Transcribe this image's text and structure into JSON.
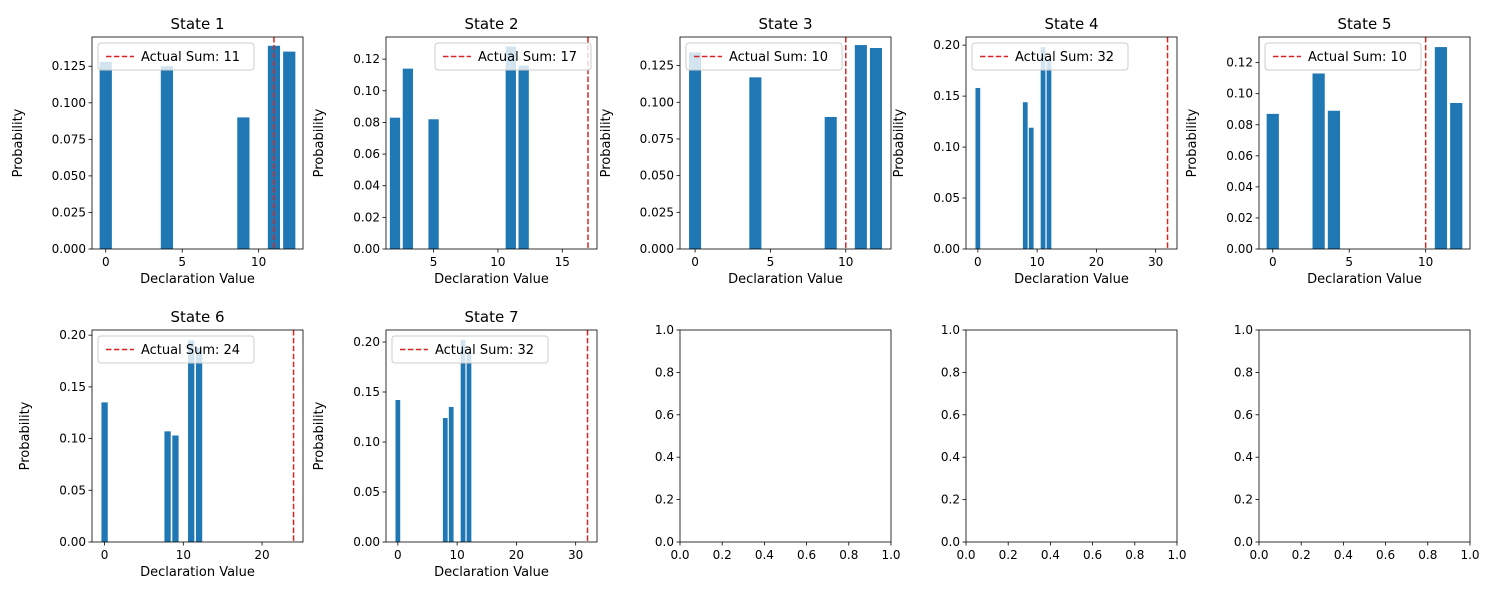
{
  "chart_data": [
    {
      "type": "bar",
      "title": "State 1",
      "xlabel": "Declaration Value",
      "ylabel": "Probability",
      "xlim": [
        -0.9,
        12.9
      ],
      "ylim": [
        0,
        0.145
      ],
      "xticks": [
        0,
        5,
        10
      ],
      "yticks": [
        0,
        0.025,
        0.05,
        0.075,
        0.1,
        0.125
      ],
      "ytick_decimals": 3,
      "x": [
        0,
        4,
        9,
        11,
        12
      ],
      "values": [
        0.128,
        0.125,
        0.09,
        0.139,
        0.135
      ],
      "line": {
        "x": 11,
        "label": "Actual Sum: 11"
      },
      "color": "#1f77b4",
      "line_color": "#d62728",
      "legend_position": "top-left"
    },
    {
      "type": "bar",
      "title": "State 2",
      "xlabel": "Declaration Value",
      "ylabel": "Probability",
      "xlim": [
        1.3,
        17.7
      ],
      "ylim": [
        0,
        0.134
      ],
      "xticks": [
        5,
        10,
        15
      ],
      "yticks": [
        0,
        0.02,
        0.04,
        0.06,
        0.08,
        0.1,
        0.12
      ],
      "ytick_decimals": 2,
      "x": [
        2,
        3,
        5,
        11,
        12
      ],
      "values": [
        0.083,
        0.114,
        0.082,
        0.128,
        0.116
      ],
      "line": {
        "x": 17,
        "label": "Actual Sum: 17"
      },
      "color": "#1f77b4",
      "line_color": "#d62728",
      "legend_position": "top-right"
    },
    {
      "type": "bar",
      "title": "State 3",
      "xlabel": "Declaration Value",
      "ylabel": "Probability",
      "xlim": [
        -1.0,
        13.0
      ],
      "ylim": [
        0,
        0.1445
      ],
      "xticks": [
        0,
        5,
        10
      ],
      "yticks": [
        0,
        0.025,
        0.05,
        0.075,
        0.1,
        0.125
      ],
      "ytick_decimals": 3,
      "x": [
        0,
        4,
        9,
        11,
        12
      ],
      "values": [
        0.134,
        0.117,
        0.09,
        0.139,
        0.137
      ],
      "line": {
        "x": 10,
        "label": "Actual Sum: 10"
      },
      "color": "#1f77b4",
      "line_color": "#d62728",
      "legend_position": "top-left"
    },
    {
      "type": "bar",
      "title": "State 4",
      "xlabel": "Declaration Value",
      "ylabel": "Probability",
      "xlim": [
        -2.0,
        33.6
      ],
      "ylim": [
        0,
        0.208
      ],
      "xticks": [
        0,
        10,
        20,
        30
      ],
      "yticks": [
        0,
        0.05,
        0.1,
        0.15,
        0.2
      ],
      "ytick_decimals": 2,
      "x": [
        0,
        8,
        9,
        11,
        12
      ],
      "values": [
        0.158,
        0.144,
        0.119,
        0.198,
        0.185
      ],
      "line": {
        "x": 32,
        "label": "Actual Sum: 32"
      },
      "color": "#1f77b4",
      "line_color": "#d62728",
      "legend_position": "top-left"
    },
    {
      "type": "bar",
      "title": "State 5",
      "xlabel": "Declaration Value",
      "ylabel": "Probability",
      "xlim": [
        -0.9,
        12.9
      ],
      "ylim": [
        0,
        0.1365
      ],
      "xticks": [
        0,
        5,
        10
      ],
      "yticks": [
        0,
        0.02,
        0.04,
        0.06,
        0.08,
        0.1,
        0.12
      ],
      "ytick_decimals": 2,
      "x": [
        0,
        3,
        4,
        11,
        12
      ],
      "values": [
        0.087,
        0.113,
        0.089,
        0.13,
        0.094
      ],
      "line": {
        "x": 10,
        "label": "Actual Sum: 10"
      },
      "color": "#1f77b4",
      "line_color": "#d62728",
      "legend_position": "top-left"
    },
    {
      "type": "bar",
      "title": "State 6",
      "xlabel": "Declaration Value",
      "ylabel": "Probability",
      "xlim": [
        -1.6,
        25.2
      ],
      "ylim": [
        0,
        0.205
      ],
      "xticks": [
        0,
        10,
        20
      ],
      "yticks": [
        0,
        0.05,
        0.1,
        0.15,
        0.2
      ],
      "ytick_decimals": 2,
      "x": [
        0,
        8,
        9,
        11,
        12
      ],
      "values": [
        0.135,
        0.107,
        0.103,
        0.195,
        0.188
      ],
      "line": {
        "x": 24,
        "label": "Actual Sum: 24"
      },
      "color": "#1f77b4",
      "line_color": "#d62728",
      "legend_position": "top-left"
    },
    {
      "type": "bar",
      "title": "State 7",
      "xlabel": "Declaration Value",
      "ylabel": "Probability",
      "xlim": [
        -2.0,
        33.6
      ],
      "ylim": [
        0,
        0.212
      ],
      "xticks": [
        0,
        10,
        20,
        30
      ],
      "yticks": [
        0,
        0.05,
        0.1,
        0.15,
        0.2
      ],
      "ytick_decimals": 2,
      "x": [
        0,
        8,
        9,
        11,
        12
      ],
      "values": [
        0.142,
        0.124,
        0.135,
        0.202,
        0.19
      ],
      "line": {
        "x": 32,
        "label": "Actual Sum: 32"
      },
      "color": "#1f77b4",
      "line_color": "#d62728",
      "legend_position": "top-left"
    },
    {
      "type": "bar",
      "title": "",
      "xlim": [
        0,
        1
      ],
      "ylim": [
        0,
        1
      ],
      "xticks": [
        0,
        0.2,
        0.4,
        0.6,
        0.8,
        1.0
      ],
      "yticks": [
        0,
        0.2,
        0.4,
        0.6,
        0.8,
        1.0
      ],
      "ytick_decimals": 1,
      "xtick_decimals": 1,
      "x": [],
      "values": []
    },
    {
      "type": "bar",
      "title": "",
      "xlim": [
        0,
        1
      ],
      "ylim": [
        0,
        1
      ],
      "xticks": [
        0,
        0.2,
        0.4,
        0.6,
        0.8,
        1.0
      ],
      "yticks": [
        0,
        0.2,
        0.4,
        0.6,
        0.8,
        1.0
      ],
      "ytick_decimals": 1,
      "xtick_decimals": 1,
      "x": [],
      "values": []
    },
    {
      "type": "bar",
      "title": "",
      "xlim": [
        0,
        1
      ],
      "ylim": [
        0,
        1
      ],
      "xticks": [
        0,
        0.2,
        0.4,
        0.6,
        0.8,
        1.0
      ],
      "yticks": [
        0,
        0.2,
        0.4,
        0.6,
        0.8,
        1.0
      ],
      "ytick_decimals": 1,
      "xtick_decimals": 1,
      "x": [],
      "values": []
    }
  ]
}
